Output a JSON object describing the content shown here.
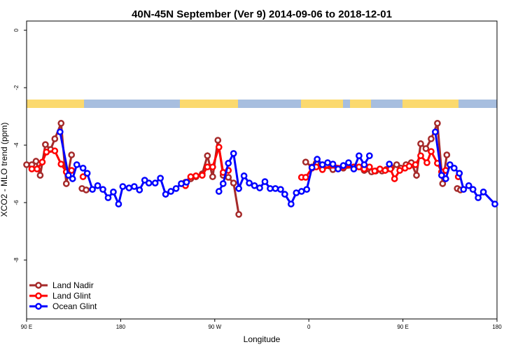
{
  "chart_data": {
    "type": "line",
    "title": "40N-45N September (Ver 9)   2014-09-06 to 2018-12-01",
    "xlabel": "Longitude",
    "ylabel": "XCO2 - MLO trend (ppm)",
    "xlim": [
      90,
      540
    ],
    "ylim": [
      -10.05,
      0.32
    ],
    "xticks": [
      {
        "value": 90,
        "label": "90 E"
      },
      {
        "value": 180,
        "label": "180"
      },
      {
        "value": 270,
        "label": "90 W"
      },
      {
        "value": 360,
        "label": "0"
      },
      {
        "value": 450,
        "label": "90 E"
      },
      {
        "value": 540,
        "label": "180"
      }
    ],
    "yticks": [
      0,
      -2,
      -4,
      -6,
      -8
    ],
    "legend": "bottom-left",
    "series": [
      {
        "name": "Land Nadir",
        "color": "#a52a2a",
        "x": [
          90,
          95,
          99,
          103,
          108,
          113,
          117,
          123,
          128,
          133,
          138,
          143,
          147,
          200,
          242,
          247,
          252,
          258,
          263,
          268,
          273,
          278,
          283,
          288,
          293,
          330,
          357,
          363,
          367,
          373,
          383,
          393,
          403,
          413,
          420,
          424,
          430,
          434,
          439,
          444,
          448,
          453,
          458,
          463,
          467,
          472,
          477,
          483,
          488,
          492,
          497,
          502,
          505
        ],
        "values": [
          -4.68,
          -4.68,
          -4.56,
          -5.05,
          -3.98,
          -4.15,
          -3.78,
          -3.24,
          -5.34,
          -4.34,
          null,
          -5.51,
          -5.56,
          null,
          -5.29,
          -5.17,
          -5.1,
          -5.0,
          -4.37,
          -5.1,
          -3.83,
          -5.05,
          -5.12,
          -5.32,
          -6.41,
          null,
          -4.59,
          -4.76,
          -4.63,
          -4.73,
          -4.85,
          -4.8,
          -4.76,
          -4.88,
          -4.93,
          -4.9,
          -4.9,
          -4.85,
          -4.78,
          -4.68,
          -4.8,
          -4.68,
          -4.61,
          -5.05,
          -3.95,
          -4.12,
          -3.78,
          -3.24,
          -5.34,
          -4.34,
          null,
          -5.51,
          -5.56
        ]
      },
      {
        "name": "Land Glint",
        "color": "#ff0000",
        "x": [
          95,
          100,
          105,
          109,
          117,
          123,
          128,
          133,
          138,
          144,
          200,
          242,
          247,
          252,
          258,
          263,
          268,
          274,
          278,
          283,
          320,
          353,
          357,
          363,
          367,
          373,
          383,
          393,
          403,
          408,
          413,
          418,
          423,
          428,
          433,
          438,
          442,
          447,
          452,
          456,
          462,
          467,
          473,
          477,
          483,
          487,
          491,
          496,
          503
        ],
        "values": [
          -4.83,
          -4.83,
          -4.59,
          -4.24,
          -4.2,
          -4.66,
          -4.93,
          -4.88,
          null,
          -5.1,
          null,
          -5.41,
          -5.1,
          -5.07,
          -5.05,
          -4.76,
          -4.76,
          -4.07,
          -4.95,
          -4.88,
          null,
          -5.12,
          -5.12,
          -4.8,
          -4.76,
          -4.85,
          -4.7,
          -4.75,
          -4.76,
          -4.76,
          -4.83,
          -4.76,
          -4.9,
          -4.83,
          -4.88,
          -4.83,
          -5.17,
          -4.88,
          -4.8,
          -4.73,
          -4.68,
          -4.37,
          -4.61,
          -4.22,
          -4.63,
          -4.93,
          -4.88,
          null,
          -5.1
        ]
      },
      {
        "name": "Ocean Glint",
        "color": "#0000ff",
        "x": [
          122,
          130,
          134,
          138,
          144,
          148,
          153,
          158,
          163,
          168,
          173,
          178,
          182,
          188,
          193,
          198,
          203,
          207,
          213,
          218,
          223,
          228,
          233,
          238,
          243,
          258,
          274,
          278,
          283,
          288,
          293,
          298,
          303,
          308,
          313,
          318,
          323,
          328,
          333,
          337,
          343,
          348,
          353,
          358,
          363,
          368,
          373,
          378,
          383,
          388,
          393,
          398,
          403,
          408,
          413,
          418,
          428,
          437,
          460,
          481,
          487,
          491,
          495,
          499,
          504,
          508,
          513,
          517,
          522,
          527,
          538
        ],
        "values": [
          -3.54,
          -5.05,
          -5.17,
          -4.68,
          -4.8,
          -4.98,
          -5.54,
          -5.41,
          -5.54,
          -5.83,
          -5.63,
          -6.05,
          -5.44,
          -5.49,
          -5.44,
          -5.56,
          -5.22,
          -5.32,
          -5.32,
          -5.15,
          -5.71,
          -5.61,
          -5.51,
          -5.34,
          -5.29,
          null,
          -5.61,
          -5.34,
          -4.63,
          -4.29,
          -5.51,
          -5.07,
          -5.32,
          -5.41,
          -5.49,
          -5.27,
          -5.51,
          -5.51,
          -5.54,
          -5.71,
          -6.05,
          -5.66,
          -5.61,
          -5.54,
          -4.78,
          -4.49,
          -4.68,
          -4.61,
          -4.66,
          -4.83,
          -4.71,
          -4.61,
          -4.83,
          -4.37,
          -4.68,
          -4.37,
          null,
          -4.66,
          null,
          -3.54,
          -5.05,
          -5.17,
          -4.68,
          -4.8,
          -4.98,
          -5.54,
          -5.41,
          -5.54,
          -5.83,
          -5.63,
          -6.05
        ]
      }
    ]
  }
}
